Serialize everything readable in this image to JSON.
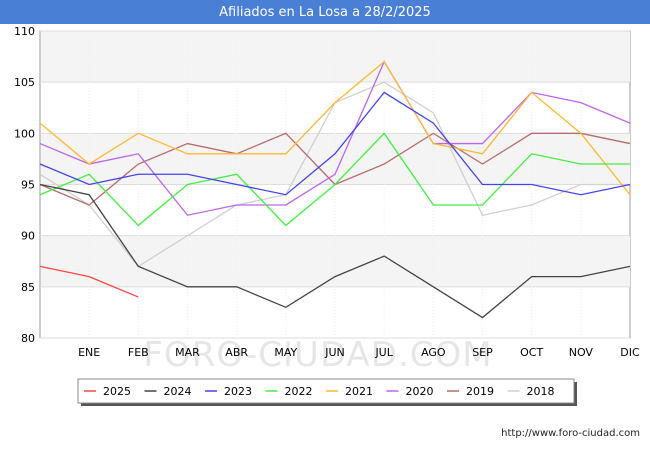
{
  "header": {
    "title": "Afiliados en La Losa a 28/2/2025"
  },
  "footer": {
    "source": "http://www.foro-ciudad.com"
  },
  "watermark": "FORO-CIUDAD.COM",
  "chart_data": {
    "type": "line",
    "title": "Afiliados en La Losa a 28/2/2025",
    "categories": [
      "",
      "ENE",
      "FEB",
      "MAR",
      "ABR",
      "MAY",
      "JUN",
      "JUL",
      "AGO",
      "SEP",
      "OCT",
      "NOV",
      "DIC"
    ],
    "ylim": [
      80,
      110
    ],
    "yticks": [
      80,
      85,
      90,
      95,
      100,
      105,
      110
    ],
    "grid": true,
    "legend_position": "bottom",
    "series": [
      {
        "name": "2025",
        "color": "#ff4444",
        "values": [
          87,
          86,
          84,
          null,
          null,
          null,
          null,
          null,
          null,
          null,
          null,
          null,
          null
        ]
      },
      {
        "name": "2024",
        "color": "#444444",
        "values": [
          95,
          94,
          87,
          85,
          85,
          83,
          86,
          88,
          85,
          82,
          86,
          86,
          87
        ]
      },
      {
        "name": "2023",
        "color": "#4444ee",
        "values": [
          97,
          95,
          96,
          96,
          95,
          94,
          98,
          104,
          101,
          95,
          95,
          94,
          95
        ]
      },
      {
        "name": "2022",
        "color": "#44ee44",
        "values": [
          94,
          96,
          91,
          95,
          96,
          91,
          95,
          100,
          93,
          93,
          98,
          97,
          97
        ]
      },
      {
        "name": "2021",
        "color": "#ffb833",
        "values": [
          101,
          97,
          100,
          98,
          98,
          98,
          103,
          107,
          99,
          98,
          104,
          100,
          94
        ]
      },
      {
        "name": "2020",
        "color": "#bb66ee",
        "values": [
          99,
          97,
          98,
          92,
          93,
          93,
          96,
          107,
          99,
          99,
          104,
          103,
          101
        ]
      },
      {
        "name": "2019",
        "color": "#b86b6b",
        "values": [
          95,
          93,
          97,
          99,
          98,
          100,
          95,
          97,
          100,
          97,
          100,
          100,
          99
        ]
      },
      {
        "name": "2018",
        "color": "#d0d0d0",
        "values": [
          96,
          93,
          87,
          90,
          93,
          94,
          103,
          105,
          102,
          92,
          93,
          95,
          95
        ]
      }
    ]
  }
}
